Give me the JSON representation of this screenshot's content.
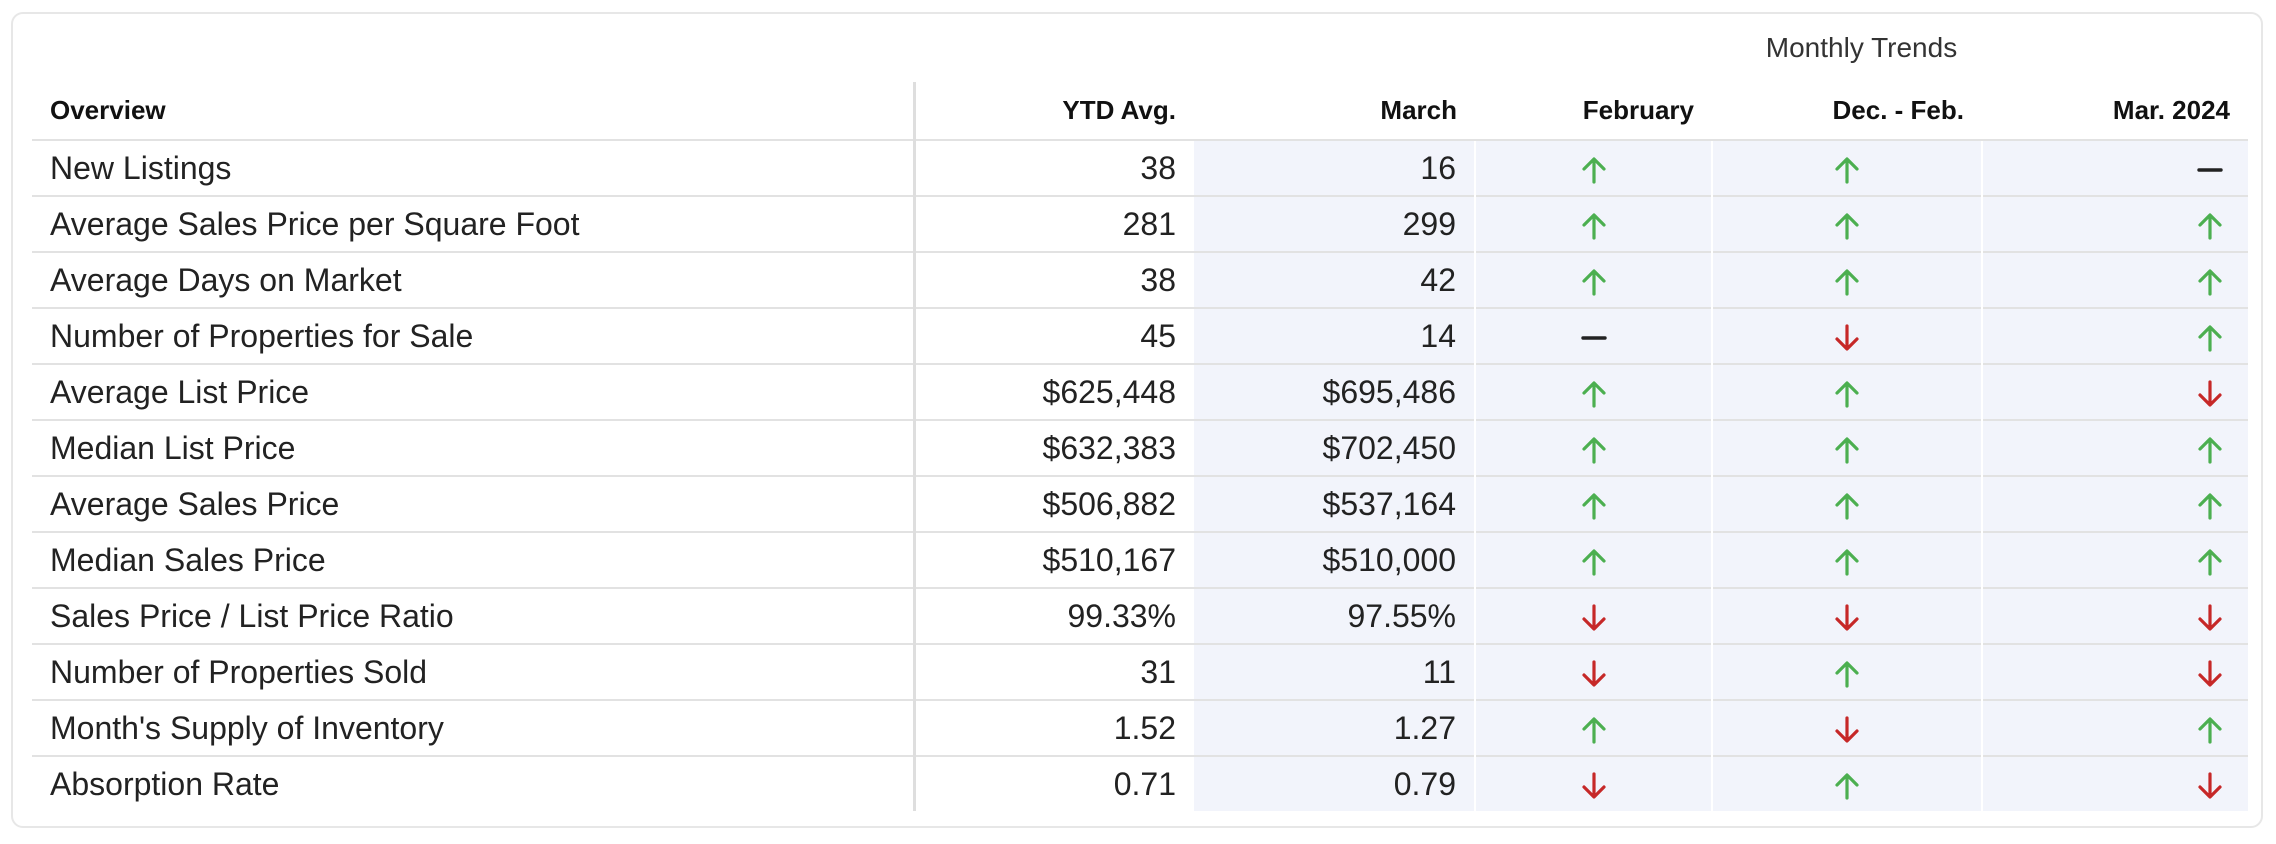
{
  "colors": {
    "up": "#4caf50",
    "down": "#c62828",
    "flat": "#222222",
    "shaded_bg": "#f2f4fb"
  },
  "header": {
    "group_label": "Monthly Trends",
    "columns": [
      "Overview",
      "YTD Avg.",
      "March",
      "February",
      "Dec. - Feb.",
      "Mar. 2024"
    ]
  },
  "rows": [
    {
      "label": "New Listings",
      "ytd": "38",
      "march": "16",
      "trends": [
        "up-arrow-icon",
        "up-arrow-icon",
        "flat-dash-icon"
      ]
    },
    {
      "label": "Average Sales Price per Square Foot",
      "ytd": "281",
      "march": "299",
      "trends": [
        "up-arrow-icon",
        "up-arrow-icon",
        "up-arrow-icon"
      ]
    },
    {
      "label": "Average Days on Market",
      "ytd": "38",
      "march": "42",
      "trends": [
        "up-arrow-icon",
        "up-arrow-icon",
        "up-arrow-icon"
      ]
    },
    {
      "label": "Number of Properties for Sale",
      "ytd": "45",
      "march": "14",
      "trends": [
        "flat-dash-icon",
        "down-arrow-icon",
        "up-arrow-icon"
      ]
    },
    {
      "label": "Average List Price",
      "ytd": "$625,448",
      "march": "$695,486",
      "trends": [
        "up-arrow-icon",
        "up-arrow-icon",
        "down-arrow-icon"
      ]
    },
    {
      "label": "Median List Price",
      "ytd": "$632,383",
      "march": "$702,450",
      "trends": [
        "up-arrow-icon",
        "up-arrow-icon",
        "up-arrow-icon"
      ]
    },
    {
      "label": "Average Sales Price",
      "ytd": "$506,882",
      "march": "$537,164",
      "trends": [
        "up-arrow-icon",
        "up-arrow-icon",
        "up-arrow-icon"
      ]
    },
    {
      "label": "Median Sales Price",
      "ytd": "$510,167",
      "march": "$510,000",
      "trends": [
        "up-arrow-icon",
        "up-arrow-icon",
        "up-arrow-icon"
      ]
    },
    {
      "label": "Sales Price / List Price Ratio",
      "ytd": "99.33%",
      "march": "97.55%",
      "trends": [
        "down-arrow-icon",
        "down-arrow-icon",
        "down-arrow-icon"
      ]
    },
    {
      "label": "Number of Properties Sold",
      "ytd": "31",
      "march": "11",
      "trends": [
        "down-arrow-icon",
        "up-arrow-icon",
        "down-arrow-icon"
      ]
    },
    {
      "label": "Month's Supply of Inventory",
      "ytd": "1.52",
      "march": "1.27",
      "trends": [
        "up-arrow-icon",
        "down-arrow-icon",
        "up-arrow-icon"
      ]
    },
    {
      "label": "Absorption Rate",
      "ytd": "0.71",
      "march": "0.79",
      "trends": [
        "down-arrow-icon",
        "up-arrow-icon",
        "down-arrow-icon"
      ]
    }
  ]
}
